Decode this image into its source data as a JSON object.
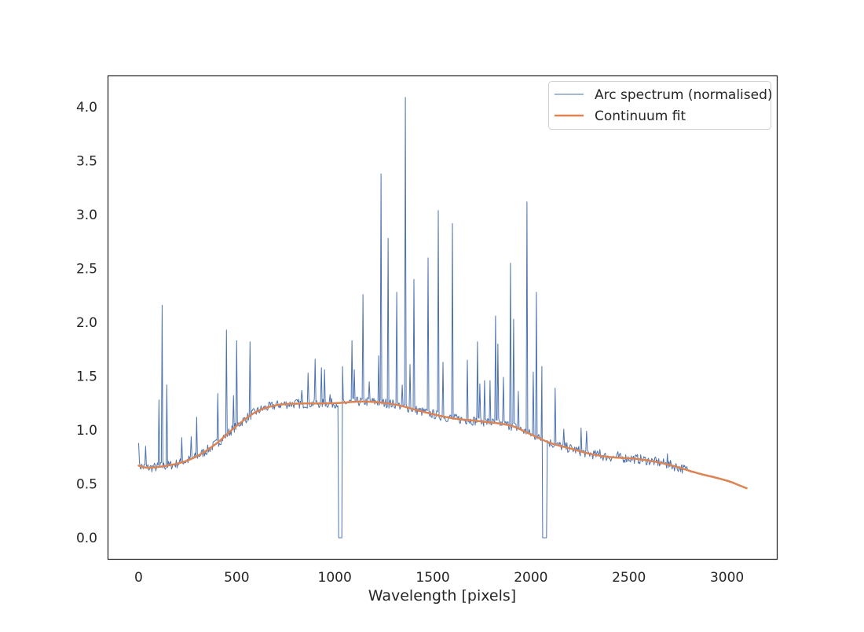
{
  "chart_data": {
    "type": "line",
    "title": "",
    "xlabel": "Wavelength [pixels]",
    "ylabel": "",
    "xlim": [
      -156,
      3256
    ],
    "ylim": [
      -0.2,
      4.29
    ],
    "xticks": [
      0,
      500,
      1000,
      1500,
      2000,
      2500,
      3000
    ],
    "yticks": [
      0.0,
      0.5,
      1.0,
      1.5,
      2.0,
      2.5,
      3.0,
      3.5,
      4.0
    ],
    "grid": false,
    "legend_position": "top-right",
    "series": [
      {
        "name": "Arc spectrum (normalised)",
        "color": "#4c72b0",
        "x_range": [
          0,
          3100
        ],
        "emission_lines": [
          [
            0,
            0.88
          ],
          [
            36,
            0.85
          ],
          [
            104,
            1.28
          ],
          [
            120,
            2.16
          ],
          [
            144,
            1.42
          ],
          [
            220,
            0.93
          ],
          [
            268,
            0.94
          ],
          [
            296,
            1.12
          ],
          [
            404,
            1.34
          ],
          [
            448,
            1.93
          ],
          [
            484,
            1.32
          ],
          [
            500,
            1.83
          ],
          [
            568,
            1.82
          ],
          [
            832,
            1.37
          ],
          [
            864,
            1.53
          ],
          [
            900,
            1.66
          ],
          [
            932,
            1.58
          ],
          [
            948,
            1.56
          ],
          [
            976,
            1.33
          ],
          [
            1040,
            1.59
          ],
          [
            1088,
            1.83
          ],
          [
            1100,
            1.56
          ],
          [
            1144,
            2.26
          ],
          [
            1176,
            1.45
          ],
          [
            1224,
            1.69
          ],
          [
            1236,
            3.38
          ],
          [
            1272,
            2.78
          ],
          [
            1316,
            2.28
          ],
          [
            1344,
            1.42
          ],
          [
            1360,
            4.09
          ],
          [
            1384,
            1.61
          ],
          [
            1404,
            2.4
          ],
          [
            1476,
            2.6
          ],
          [
            1528,
            3.04
          ],
          [
            1552,
            1.63
          ],
          [
            1600,
            2.92
          ],
          [
            1676,
            1.65
          ],
          [
            1728,
            1.82
          ],
          [
            1740,
            1.43
          ],
          [
            1764,
            1.46
          ],
          [
            1792,
            1.46
          ],
          [
            1820,
            2.06
          ],
          [
            1832,
            1.8
          ],
          [
            1860,
            1.49
          ],
          [
            1896,
            2.55
          ],
          [
            1912,
            2.03
          ],
          [
            1936,
            1.36
          ],
          [
            1980,
            3.12
          ],
          [
            2012,
            1.54
          ],
          [
            2028,
            2.28
          ],
          [
            2056,
            1.59
          ],
          [
            2124,
            1.39
          ],
          [
            2168,
            1.01
          ],
          [
            2256,
            1.02
          ],
          [
            2284,
            0.99
          ],
          [
            2352,
            0.82
          ],
          [
            2444,
            0.8
          ],
          [
            2696,
            0.78
          ]
        ],
        "zero_gaps": [
          [
            1020,
            1036
          ],
          [
            2060,
            2080
          ]
        ]
      },
      {
        "name": "Continuum fit",
        "color": "#dd8452",
        "points": [
          [
            0,
            0.67
          ],
          [
            50,
            0.65
          ],
          [
            200,
            0.69
          ],
          [
            300,
            0.76
          ],
          [
            400,
            0.88
          ],
          [
            500,
            1.04
          ],
          [
            600,
            1.17
          ],
          [
            700,
            1.23
          ],
          [
            800,
            1.245
          ],
          [
            1000,
            1.25
          ],
          [
            1150,
            1.265
          ],
          [
            1300,
            1.24
          ],
          [
            1450,
            1.17
          ],
          [
            1600,
            1.11
          ],
          [
            1750,
            1.08
          ],
          [
            1900,
            1.04
          ],
          [
            2000,
            0.96
          ],
          [
            2100,
            0.88
          ],
          [
            2200,
            0.83
          ],
          [
            2300,
            0.78
          ],
          [
            2400,
            0.75
          ],
          [
            2550,
            0.73
          ],
          [
            2700,
            0.68
          ],
          [
            2850,
            0.6
          ],
          [
            3000,
            0.53
          ],
          [
            3100,
            0.46
          ]
        ]
      }
    ]
  }
}
